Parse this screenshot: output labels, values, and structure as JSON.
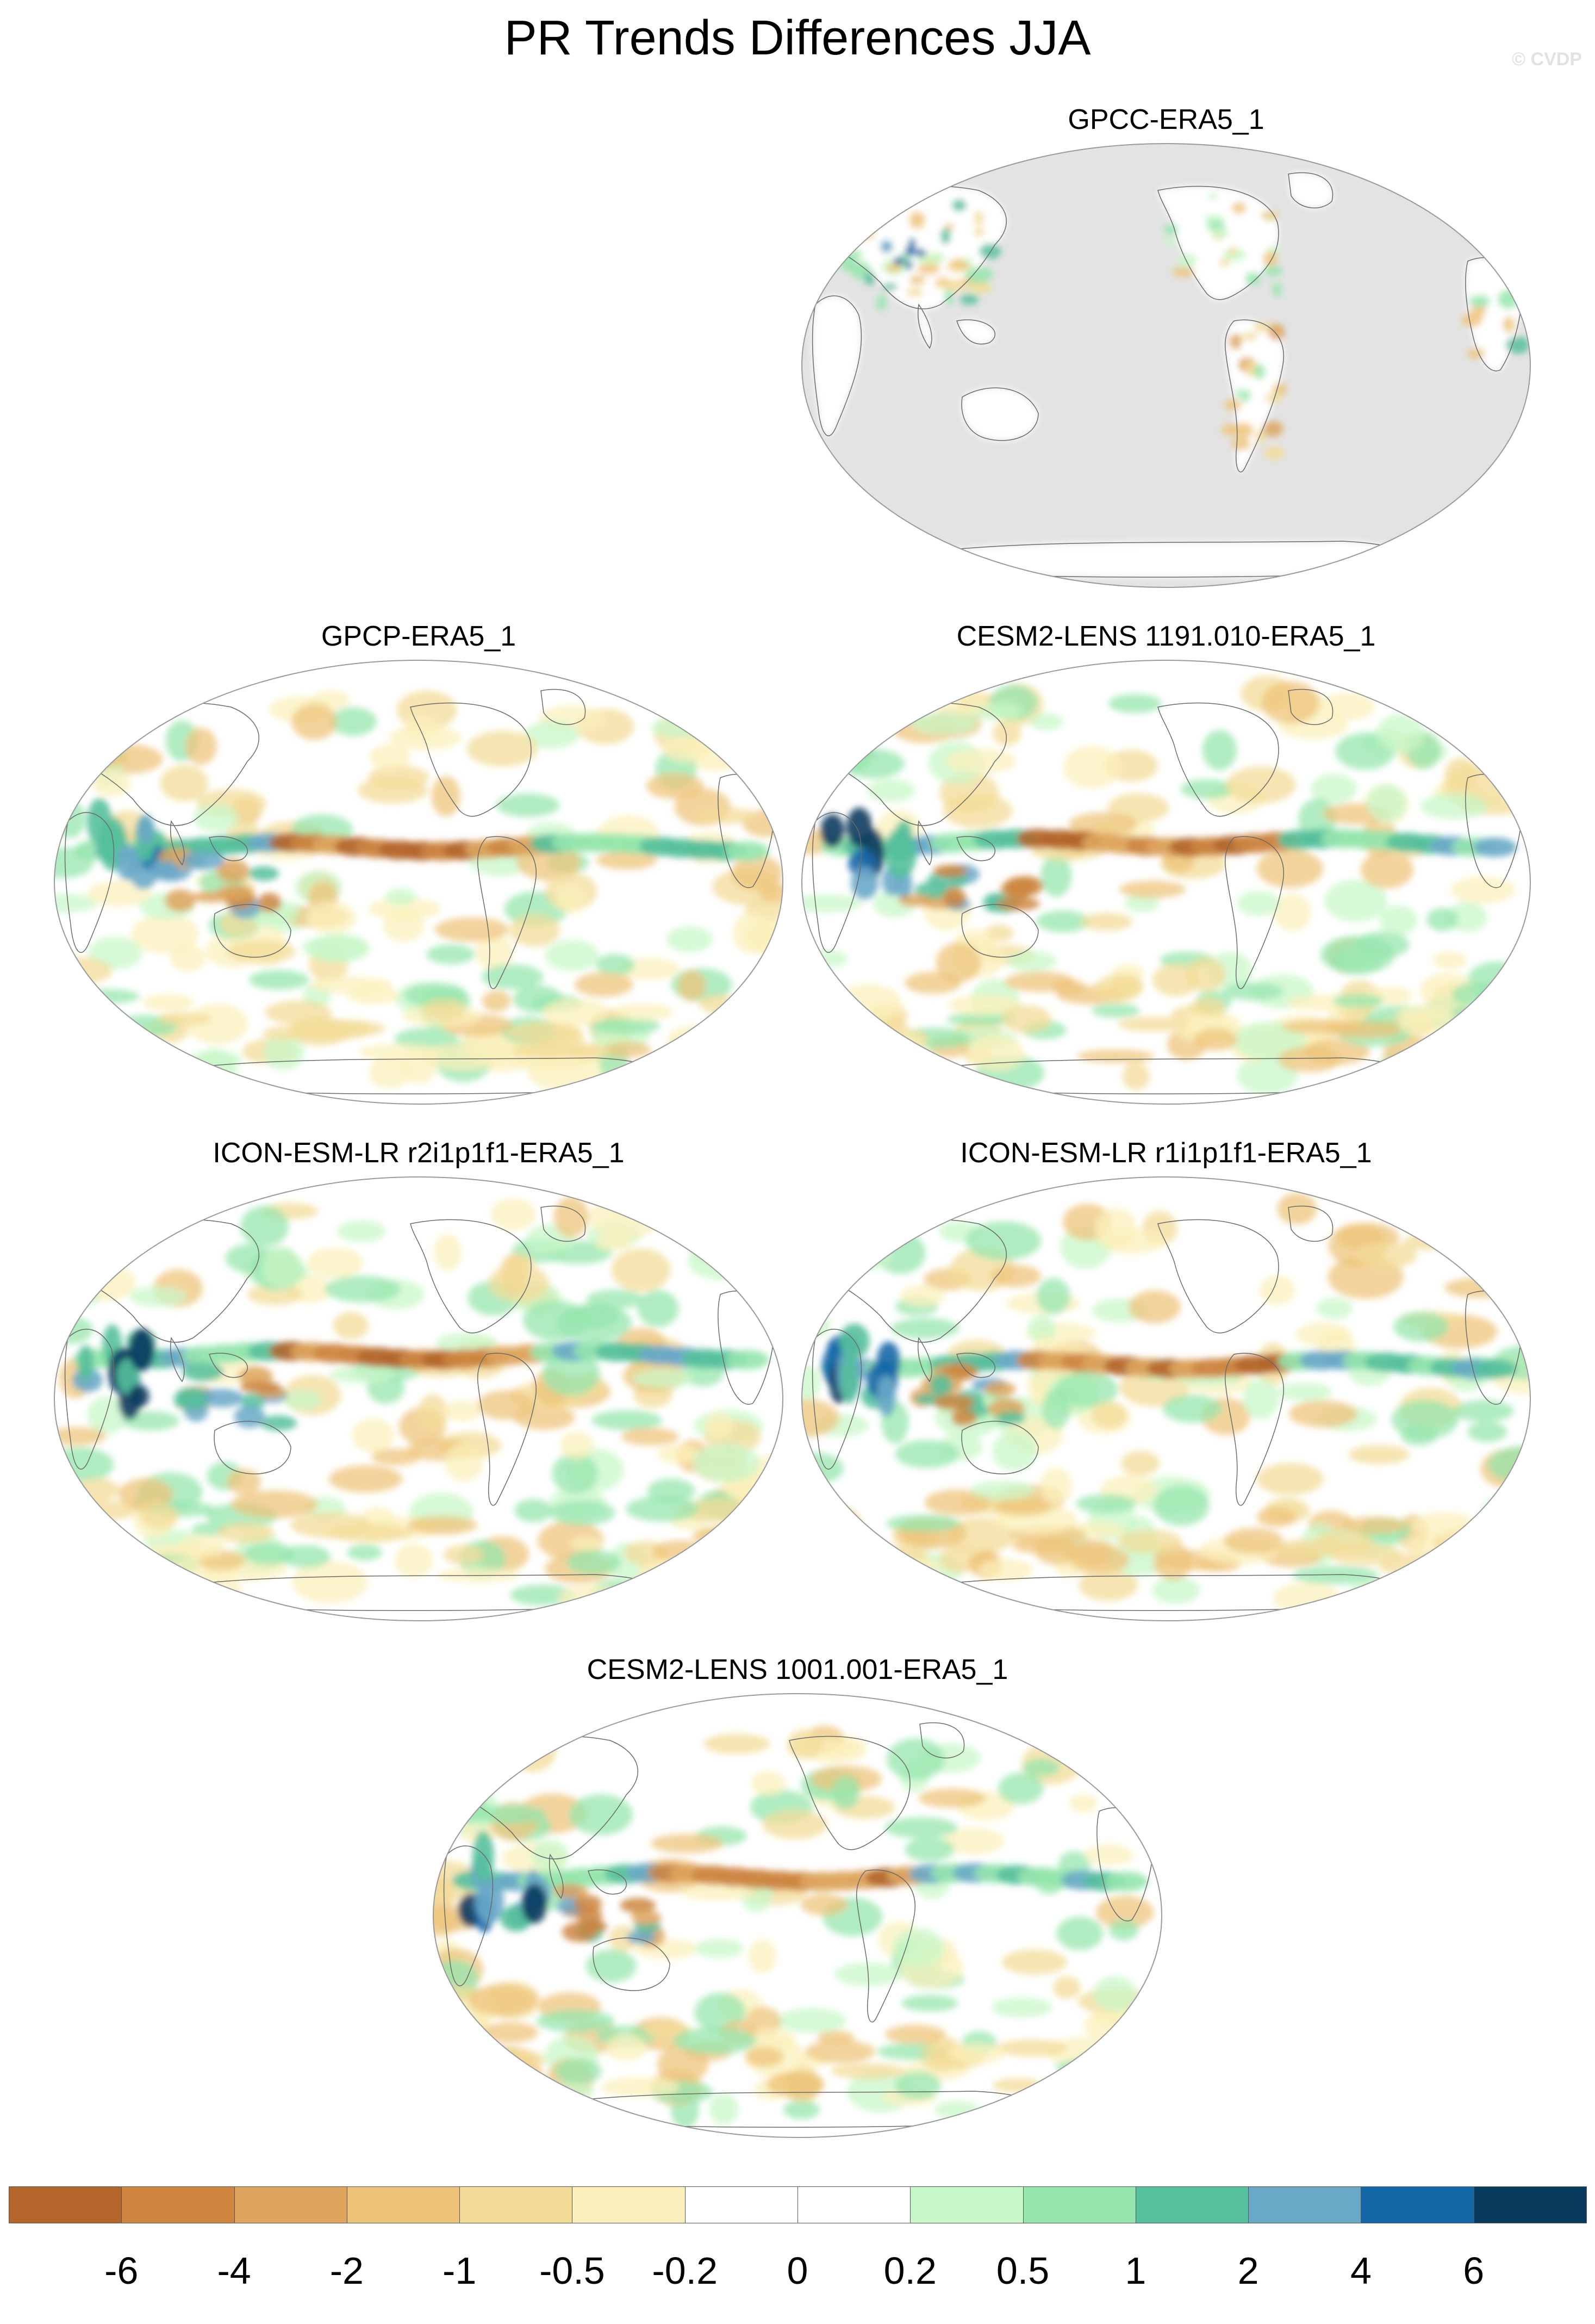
{
  "title": "PR Trends Differences JJA",
  "watermark": "© CVDP",
  "panels": [
    {
      "id": "p1",
      "title": "GPCC-ERA5_1",
      "style": "gpcc",
      "seed": 11
    },
    {
      "id": "p2",
      "title": "GPCP-ERA5_1",
      "style": "gpcp",
      "seed": 23
    },
    {
      "id": "p3",
      "title": "CESM2-LENS 1191.010-ERA5_1",
      "style": "model",
      "seed": 37
    },
    {
      "id": "p4",
      "title": "ICON-ESM-LR r2i1p1f1-ERA5_1",
      "style": "model",
      "seed": 41
    },
    {
      "id": "p5",
      "title": "ICON-ESM-LR r1i1p1f1-ERA5_1",
      "style": "model",
      "seed": 53
    },
    {
      "id": "p6",
      "title": "CESM2-LENS 1001.001-ERA5_1",
      "style": "model",
      "seed": 67
    }
  ],
  "colorbar": {
    "colors": [
      "#b4652a",
      "#cd8540",
      "#dea55e",
      "#eec47b",
      "#f3dc98",
      "#fbf0bb",
      "#ffffff",
      "#ffffff",
      "#c8f7c8",
      "#95e6ad",
      "#55c09b",
      "#6aa8c8",
      "#1468a8",
      "#083a5e"
    ],
    "labels": [
      "-6",
      "-4",
      "-2",
      "-1",
      "-0.5",
      "-0.2",
      "0",
      "0.2",
      "0.5",
      "1",
      "2",
      "4",
      "6"
    ]
  },
  "map_colors": {
    "missing": "#e3e3e3",
    "ocean_blank": "#ffffff",
    "land_outline": "#6a6a6a",
    "border": "#9a9a9a"
  }
}
